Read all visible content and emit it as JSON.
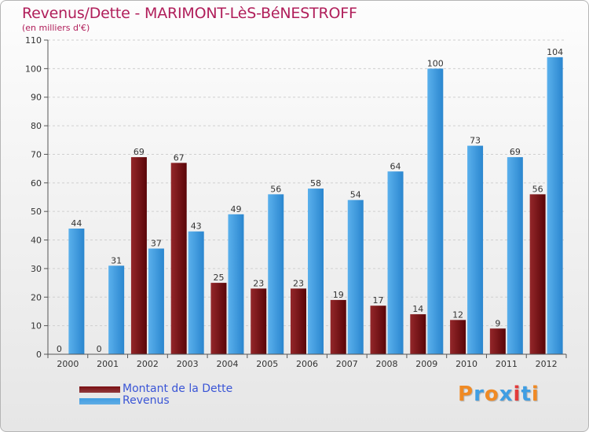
{
  "header": {
    "title": "Revenus/Dette - MARIMONT-LèS-BéNESTROFF",
    "subtitle": "(en milliers d'€)"
  },
  "legend": [
    {
      "label": "Montant de la Dette",
      "color": "#7a0f12"
    },
    {
      "label": "Revenus",
      "color": "#3f9ee3"
    }
  ],
  "logo": {
    "text": "Proxiti",
    "letter_colors": [
      "#f08a24",
      "#3f9ee3",
      "#f08a24",
      "#3f9ee3",
      "#e23b3b",
      "#3f9ee3",
      "#f08a24"
    ]
  },
  "chart_data": {
    "type": "bar",
    "categories": [
      "2000",
      "2001",
      "2002",
      "2003",
      "2004",
      "2005",
      "2006",
      "2007",
      "2008",
      "2009",
      "2010",
      "2011",
      "2012"
    ],
    "series": [
      {
        "name": "Montant de la Dette",
        "color": "#7a0f12",
        "values": [
          0,
          0,
          69,
          67,
          25,
          23,
          23,
          19,
          17,
          14,
          12,
          9,
          56
        ]
      },
      {
        "name": "Revenus",
        "color": "#3f9ee3",
        "values": [
          44,
          31,
          37,
          43,
          49,
          56,
          58,
          54,
          64,
          100,
          73,
          69,
          104
        ]
      }
    ],
    "y_ticks": [
      "0",
      "10",
      "20",
      "30",
      "40",
      "50",
      "60",
      "70",
      "80",
      "90",
      "100",
      "110"
    ],
    "ylim": [
      0,
      110
    ],
    "grid": true,
    "legend_position": "bottom-left"
  }
}
